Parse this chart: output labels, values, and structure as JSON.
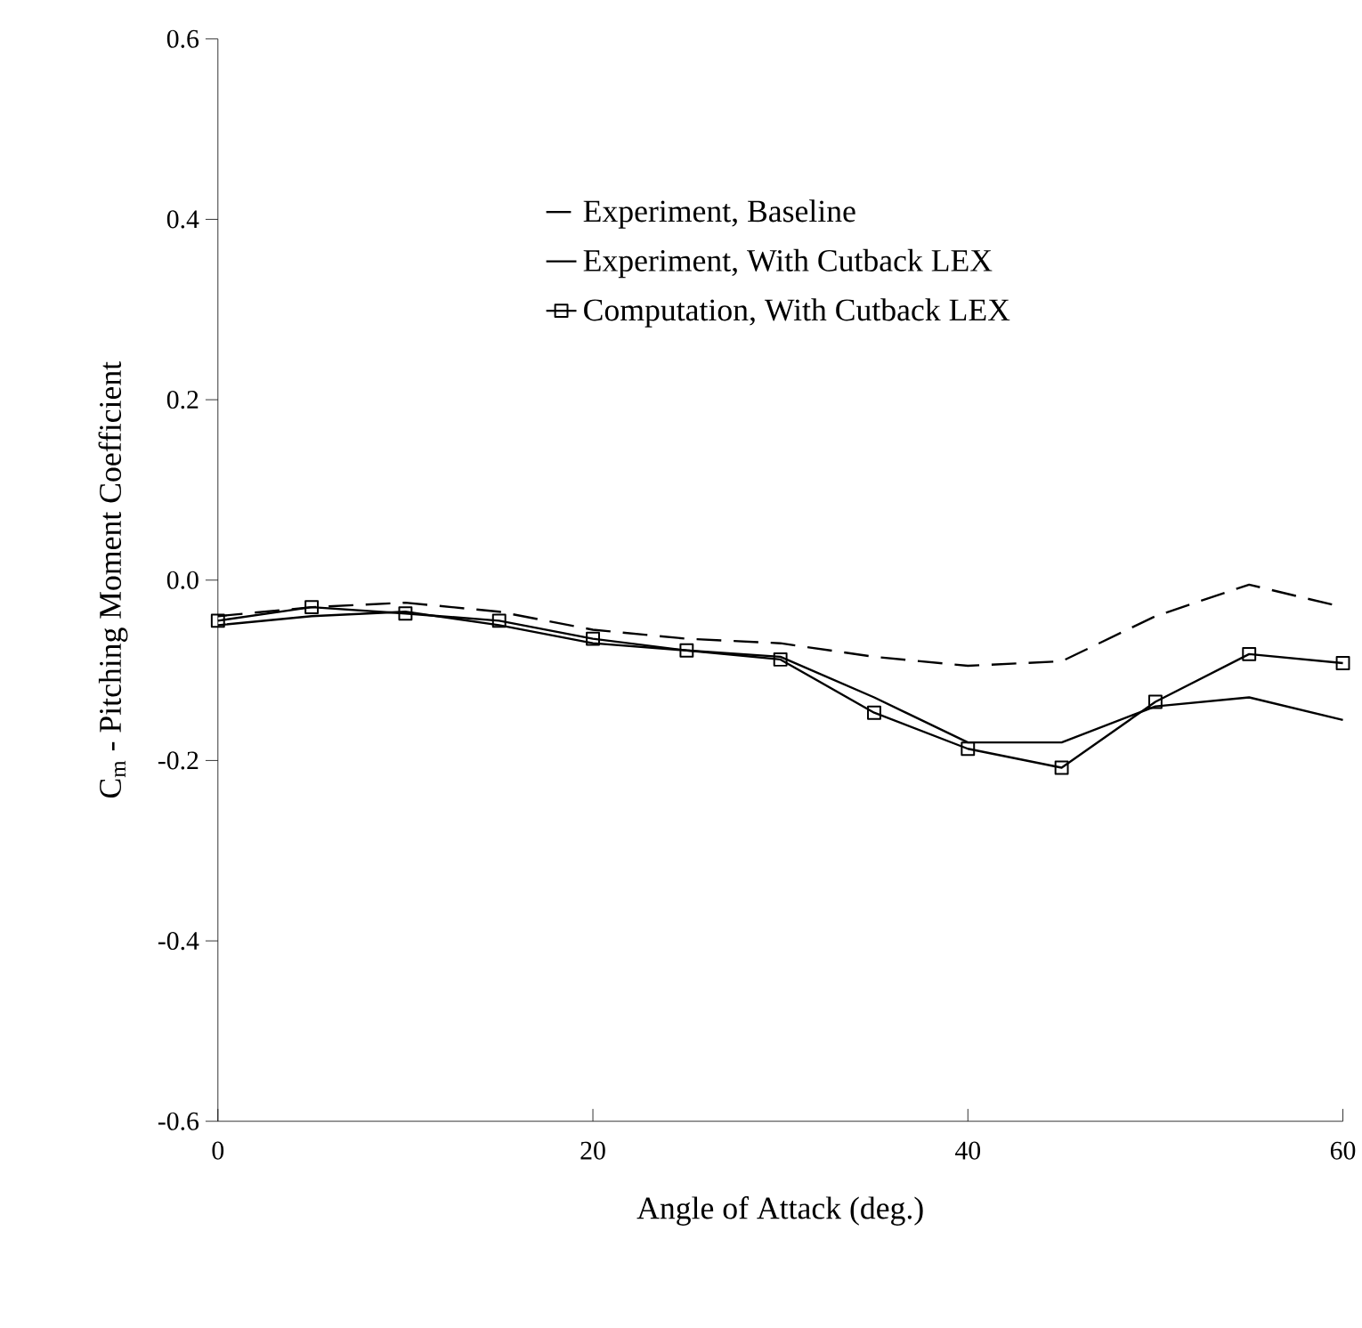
{
  "chart_data": {
    "type": "line",
    "xlabel": "Angle of Attack (deg.)",
    "ylabel": "C$_{m}$ - Pitching Moment Coefficient",
    "x": [
      0,
      5,
      10,
      15,
      20,
      25,
      30,
      35,
      40,
      45,
      50,
      55,
      60
    ],
    "series": [
      {
        "name": "Experiment, Baseline",
        "color": "#000000",
        "line_style": "dashed",
        "marker": "none",
        "values": [
          -0.04,
          -0.03,
          -0.025,
          -0.035,
          -0.055,
          -0.065,
          -0.07,
          -0.085,
          -0.095,
          -0.09,
          -0.04,
          -0.005,
          -0.03
        ]
      },
      {
        "name": "Experiment, With Cutback LEX",
        "color": "#000000",
        "line_style": "solid",
        "marker": "none",
        "values": [
          -0.05,
          -0.04,
          -0.035,
          -0.05,
          -0.07,
          -0.078,
          -0.085,
          -0.13,
          -0.18,
          -0.18,
          -0.14,
          -0.13,
          -0.155
        ]
      },
      {
        "name": "Computation, With Cutback LEX",
        "color": "#000000",
        "line_style": "solid",
        "marker": "square",
        "values": [
          -0.045,
          -0.03,
          -0.037,
          -0.045,
          -0.065,
          -0.078,
          -0.088,
          -0.147,
          -0.187,
          -0.208,
          -0.135,
          -0.082,
          -0.092
        ]
      }
    ],
    "xlim": [
      0,
      60
    ],
    "ylim": [
      -0.6,
      0.6
    ],
    "xticks": [
      0,
      20,
      40,
      60
    ],
    "yticks": [
      -0.6,
      -0.4,
      -0.2,
      {
        "value": 0,
        "label": "0.0"
      },
      0.2,
      0.4,
      0.6
    ],
    "legend": "top"
  }
}
